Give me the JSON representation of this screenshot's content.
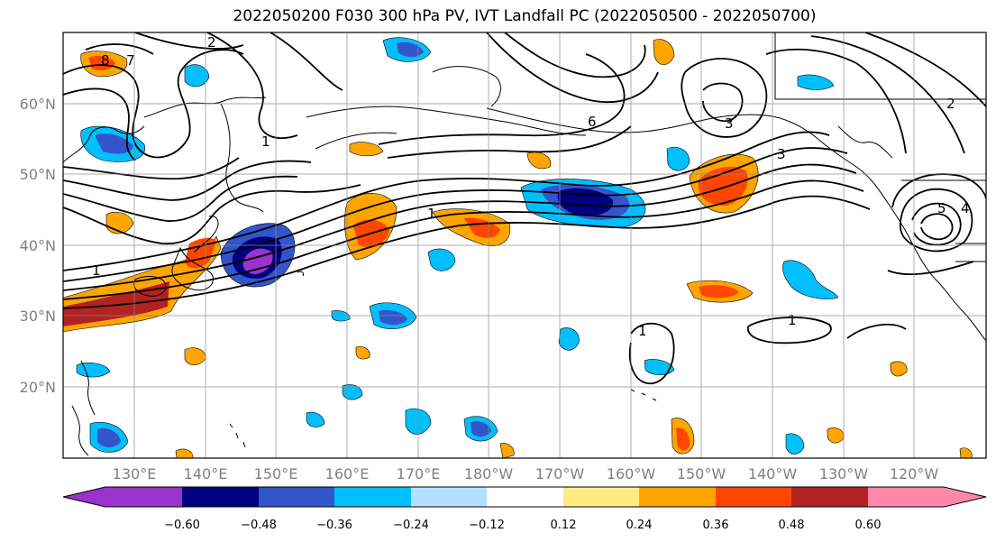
{
  "title": "2022050200 F030 300 hPa PV, IVT Landfall PC (2022050500 - 2022050700)",
  "lat_labels": [
    "60°N",
    "50°N",
    "40°N",
    "30°N",
    "20°N"
  ],
  "lon_labels": [
    "130°E",
    "140°E",
    "150°E",
    "160°E",
    "170°E",
    "180°W",
    "170°W",
    "160°W",
    "150°W",
    "140°W",
    "130°W",
    "120°W"
  ],
  "colorbar": {
    "ticks": [
      "−0.60",
      "−0.48",
      "−0.36",
      "−0.24",
      "−0.12",
      "0.12",
      "0.24",
      "0.36",
      "0.48",
      "0.60"
    ],
    "colors": [
      "#9933cc",
      "#000080",
      "#3355cc",
      "#00bfff",
      "#b3e0ff",
      "#ffffff",
      "#ffeb85",
      "#ffa500",
      "#ff4500",
      "#b22222",
      "#ff88aa"
    ]
  },
  "contour_labels": [
    "8",
    "7",
    "6",
    "5",
    "4",
    "3",
    "2",
    "1"
  ],
  "colors": {
    "neg_strong": "#3355cc",
    "neg_mid": "#00bfff",
    "neg_weak": "#b3e0ff",
    "pos_weak": "#ffeb85",
    "pos_mid": "#ffa500",
    "pos_strong": "#ff4500",
    "pos_max": "#b22222",
    "neg_max": "#9933cc"
  }
}
